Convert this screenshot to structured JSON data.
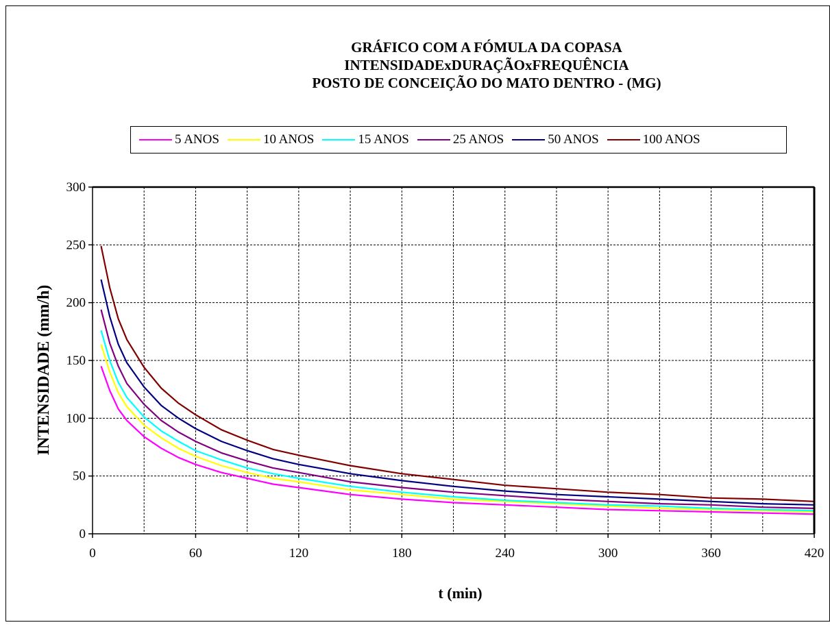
{
  "chart_data": {
    "type": "line",
    "title": [
      "GRÁFICO COM A FÓMULA DA COPASA",
      "INTENSIDADExDURAÇÃOxFREQUÊNCIA",
      "POSTO DE CONCEIÇÃO DO MATO DENTRO - (MG)"
    ],
    "xlabel": "t (min)",
    "ylabel": "INTENSIDADE  (mm/h)",
    "xlim": [
      0,
      420
    ],
    "ylim": [
      0,
      300
    ],
    "xticks": [
      "0",
      "60",
      "120",
      "180",
      "240",
      "300",
      "360",
      "420"
    ],
    "yticks": [
      "0",
      "50",
      "100",
      "150",
      "200",
      "250",
      "300"
    ],
    "x_grid_step": 30,
    "y_grid_step": 50,
    "grid": true,
    "legend_position": "top",
    "x": [
      5,
      10,
      15,
      20,
      30,
      40,
      50,
      60,
      75,
      90,
      105,
      120,
      150,
      180,
      210,
      240,
      270,
      300,
      330,
      360,
      390,
      420
    ],
    "series": [
      {
        "name": "5 ANOS",
        "color": "#ff00ff",
        "values": [
          145,
          124,
          108,
          98,
          84,
          74,
          66,
          60,
          53,
          48,
          43,
          40,
          34,
          30,
          27,
          25,
          23,
          21,
          20,
          19,
          18,
          17
        ]
      },
      {
        "name": "10 ANOS",
        "color": "#ffff00",
        "values": [
          164,
          140,
          122,
          110,
          94,
          83,
          74,
          67,
          59,
          53,
          48,
          45,
          38,
          34,
          30,
          28,
          26,
          24,
          22,
          21,
          20,
          19
        ]
      },
      {
        "name": "15 ANOS",
        "color": "#00ffff",
        "values": [
          176,
          150,
          131,
          118,
          101,
          89,
          80,
          72,
          64,
          57,
          52,
          48,
          41,
          36,
          32,
          29,
          27,
          25,
          24,
          22,
          21,
          20
        ]
      },
      {
        "name": "25 ANOS",
        "color": "#800080",
        "values": [
          194,
          165,
          145,
          130,
          112,
          98,
          88,
          80,
          70,
          63,
          57,
          53,
          45,
          40,
          36,
          33,
          30,
          28,
          26,
          25,
          23,
          22
        ]
      },
      {
        "name": "50 ANOS",
        "color": "#000080",
        "values": [
          220,
          188,
          164,
          148,
          127,
          111,
          100,
          91,
          80,
          72,
          65,
          60,
          52,
          46,
          41,
          37,
          34,
          32,
          30,
          28,
          26,
          25
        ]
      },
      {
        "name": "100 ANOS",
        "color": "#800000",
        "values": [
          249,
          213,
          186,
          168,
          144,
          126,
          113,
          103,
          90,
          81,
          73,
          68,
          59,
          52,
          47,
          42,
          39,
          36,
          34,
          31,
          30,
          28
        ]
      }
    ]
  }
}
